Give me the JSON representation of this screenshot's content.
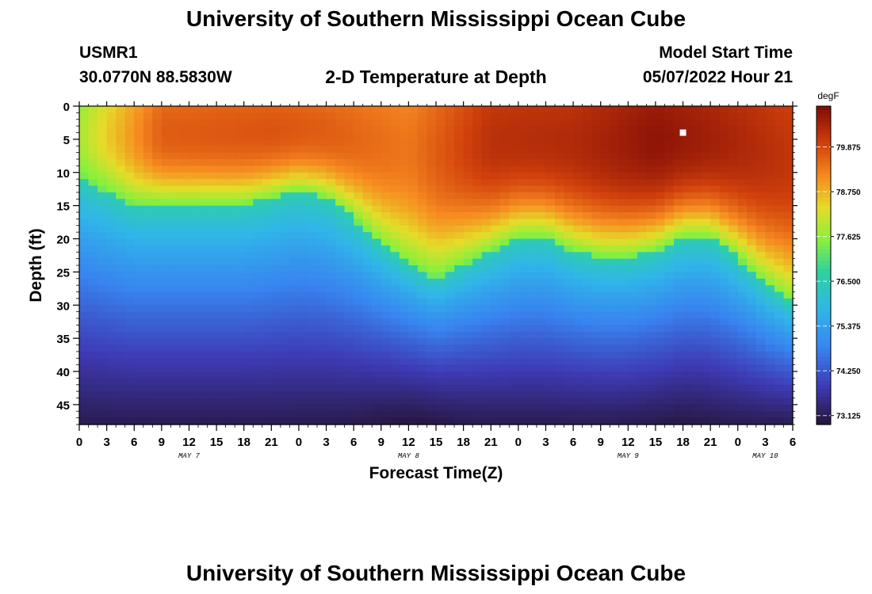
{
  "chart_data": {
    "type": "heatmap",
    "title": "University of Southern Mississippi Ocean Cube",
    "subtitle": "2-D Temperature at Depth",
    "station_id": "USMR1",
    "station_location": "30.0770N  88.5830W",
    "model_start_label": "Model Start Time",
    "model_start_value": "05/07/2022 Hour 21",
    "xlabel": "Forecast Time(Z)",
    "ylabel": "Depth (ft)",
    "x_tick_labels": [
      "0",
      "3",
      "6",
      "9",
      "12",
      "15",
      "18",
      "21",
      "0",
      "3",
      "6",
      "9",
      "12",
      "15",
      "18",
      "21",
      "0",
      "3",
      "6",
      "9",
      "12",
      "15",
      "18",
      "21",
      "0",
      "3",
      "6"
    ],
    "x_range_hours": [
      0,
      78
    ],
    "date_labels": [
      {
        "text": "MAY 7",
        "hour": 12
      },
      {
        "text": "MAY 8",
        "hour": 36
      },
      {
        "text": "MAY 9",
        "hour": 60
      },
      {
        "text": "MAY 10",
        "hour": 75
      }
    ],
    "y_tick_labels": [
      "0",
      "5",
      "10",
      "15",
      "20",
      "25",
      "30",
      "35",
      "40",
      "45"
    ],
    "y_range_ft": [
      0,
      48
    ],
    "colorbar": {
      "unit": "degF",
      "range": [
        72.9,
        80.9
      ],
      "tick_labels": [
        "79.875",
        "78.750",
        "77.625",
        "76.500",
        "75.375",
        "74.250",
        "73.125"
      ]
    },
    "marker": {
      "hour": 66,
      "depth": 4,
      "color": "#ffffff"
    },
    "thermocline_depth_ft": [
      {
        "hour": 0,
        "depth": 11
      },
      {
        "hour": 6,
        "depth": 15
      },
      {
        "hour": 12,
        "depth": 15
      },
      {
        "hour": 18,
        "depth": 15
      },
      {
        "hour": 21,
        "depth": 14
      },
      {
        "hour": 24,
        "depth": 13
      },
      {
        "hour": 27,
        "depth": 14
      },
      {
        "hour": 30,
        "depth": 17
      },
      {
        "hour": 33,
        "depth": 21
      },
      {
        "hour": 36,
        "depth": 24
      },
      {
        "hour": 39,
        "depth": 26
      },
      {
        "hour": 42,
        "depth": 24
      },
      {
        "hour": 45,
        "depth": 22
      },
      {
        "hour": 48,
        "depth": 20
      },
      {
        "hour": 51,
        "depth": 20
      },
      {
        "hour": 54,
        "depth": 22
      },
      {
        "hour": 57,
        "depth": 23
      },
      {
        "hour": 60,
        "depth": 23
      },
      {
        "hour": 63,
        "depth": 22
      },
      {
        "hour": 66,
        "depth": 20
      },
      {
        "hour": 69,
        "depth": 20
      },
      {
        "hour": 72,
        "depth": 23
      },
      {
        "hour": 75,
        "depth": 27
      },
      {
        "hour": 78,
        "depth": 30
      }
    ],
    "surface_temp_degF": [
      {
        "hour": 0,
        "temp": 77.6
      },
      {
        "hour": 3,
        "temp": 78.3
      },
      {
        "hour": 9,
        "temp": 79.5
      },
      {
        "hour": 21,
        "temp": 79.6
      },
      {
        "hour": 27,
        "temp": 79.5
      },
      {
        "hour": 36,
        "temp": 79.2
      },
      {
        "hour": 45,
        "temp": 80.1
      },
      {
        "hour": 54,
        "temp": 80.2
      },
      {
        "hour": 63,
        "temp": 80.6
      },
      {
        "hour": 69,
        "temp": 80.4
      },
      {
        "hour": 78,
        "temp": 80.0
      }
    ]
  },
  "footer_title": "University of Southern Mississippi Ocean Cube"
}
